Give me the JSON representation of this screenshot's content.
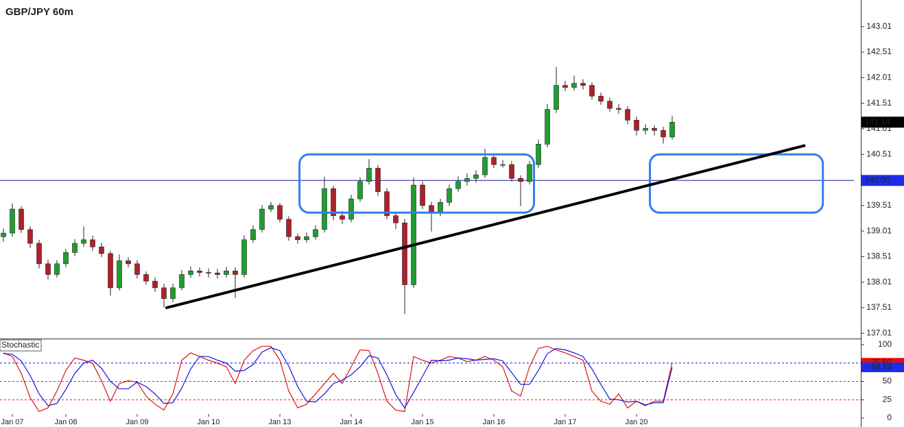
{
  "chart_data": [
    {
      "type": "candlestick",
      "title": "GBP/JPY 60m",
      "x": [
        1,
        2,
        3,
        4,
        5,
        6,
        7,
        8,
        9,
        10,
        11,
        12,
        13,
        14,
        15,
        16,
        17,
        18,
        19,
        20,
        21,
        22,
        23,
        24,
        25,
        26,
        27,
        28,
        29,
        30,
        31,
        32,
        33,
        34,
        35,
        36,
        37,
        38,
        39,
        40,
        41,
        42,
        43,
        44,
        45,
        46,
        47,
        48,
        49,
        50,
        51,
        52,
        53,
        54,
        55,
        56,
        57,
        58,
        59,
        60,
        61,
        62,
        63,
        64,
        65,
        66,
        67,
        68,
        69,
        70,
        71,
        72,
        73,
        74,
        75,
        76
      ],
      "open": [
        138.9,
        138.97,
        139.44,
        139.04,
        138.77,
        138.37,
        138.16,
        138.37,
        138.59,
        138.77,
        138.84,
        138.7,
        138.57,
        137.9,
        138.43,
        138.37,
        138.16,
        138.03,
        137.9,
        137.69,
        137.9,
        138.16,
        138.23,
        138.2,
        138.19,
        138.16,
        138.23,
        138.16,
        138.84,
        139.04,
        139.44,
        139.51,
        139.24,
        138.9,
        138.84,
        138.9,
        139.04,
        139.84,
        139.31,
        139.24,
        139.64,
        139.98,
        140.24,
        139.78,
        139.31,
        139.17,
        137.96,
        139.91,
        139.51,
        139.37,
        139.57,
        139.84,
        139.98,
        140.04,
        140.11,
        140.45,
        140.31,
        140.31,
        140.04,
        139.98,
        140.31,
        140.71,
        141.39,
        141.86,
        141.82,
        141.9,
        141.86,
        141.65,
        141.55,
        141.41,
        141.39,
        141.18,
        140.98,
        141.02,
        140.98,
        140.85
      ],
      "high": [
        139.06,
        139.55,
        139.5,
        139.1,
        138.84,
        138.45,
        138.44,
        138.66,
        138.85,
        139.1,
        138.92,
        138.78,
        138.62,
        138.55,
        138.5,
        138.44,
        138.22,
        138.1,
        137.98,
        137.98,
        138.25,
        138.32,
        138.3,
        138.28,
        138.27,
        138.31,
        138.3,
        138.93,
        139.12,
        139.52,
        139.58,
        139.56,
        139.3,
        138.96,
        138.98,
        139.12,
        140.07,
        139.9,
        139.4,
        139.72,
        140.06,
        140.42,
        140.3,
        139.85,
        139.38,
        139.25,
        140.06,
        139.98,
        139.58,
        139.64,
        139.92,
        140.08,
        140.14,
        140.2,
        140.62,
        140.52,
        140.4,
        140.38,
        140.1,
        140.38,
        140.8,
        141.5,
        142.22,
        141.95,
        142.05,
        141.98,
        141.92,
        141.72,
        141.62,
        141.5,
        141.45,
        141.25,
        141.1,
        141.08,
        141.05,
        141.26
      ],
      "low": [
        138.8,
        138.9,
        138.97,
        138.68,
        138.28,
        138.06,
        138.1,
        138.3,
        138.52,
        138.7,
        138.62,
        138.5,
        137.75,
        137.85,
        138.3,
        138.08,
        137.96,
        137.82,
        137.52,
        137.62,
        137.85,
        138.1,
        138.12,
        138.1,
        138.08,
        138.1,
        137.7,
        138.1,
        138.78,
        138.98,
        139.38,
        139.18,
        138.82,
        138.76,
        138.78,
        138.84,
        138.98,
        139.22,
        139.15,
        139.18,
        139.58,
        139.92,
        139.7,
        139.24,
        139.05,
        137.39,
        137.9,
        139.44,
        139.0,
        139.3,
        139.5,
        139.78,
        139.9,
        139.96,
        140.05,
        140.24,
        140.25,
        139.98,
        139.5,
        139.92,
        140.25,
        140.65,
        141.32,
        141.75,
        141.76,
        141.78,
        141.58,
        141.48,
        141.34,
        141.3,
        141.1,
        140.88,
        140.9,
        140.88,
        140.72,
        140.8
      ],
      "close": [
        138.97,
        139.44,
        139.04,
        138.77,
        138.37,
        138.16,
        138.37,
        138.59,
        138.77,
        138.84,
        138.7,
        138.57,
        137.9,
        138.43,
        138.37,
        138.16,
        138.03,
        137.9,
        137.69,
        137.9,
        138.16,
        138.23,
        138.2,
        138.19,
        138.16,
        138.23,
        138.16,
        138.84,
        139.04,
        139.44,
        139.51,
        139.24,
        138.9,
        138.84,
        138.9,
        139.04,
        139.84,
        139.31,
        139.24,
        139.64,
        139.98,
        140.24,
        139.78,
        139.31,
        139.17,
        137.96,
        139.91,
        139.51,
        139.37,
        139.57,
        139.84,
        139.98,
        140.04,
        140.11,
        140.45,
        140.31,
        140.31,
        140.04,
        139.98,
        140.31,
        140.71,
        141.39,
        141.86,
        141.82,
        141.9,
        141.86,
        141.65,
        141.55,
        141.41,
        141.39,
        141.18,
        140.98,
        141.02,
        140.98,
        140.85,
        141.14
      ],
      "up_color": "#1f9e2f",
      "down_color": "#b0202a",
      "xlim": [
        0.615,
        97.15
      ],
      "ylim": [
        136.92,
        143.53
      ],
      "yticks": [
        137.01,
        137.51,
        138.01,
        138.51,
        139.01,
        139.51,
        140.51,
        141.01,
        141.51,
        142.01,
        142.51,
        143.01
      ],
      "hline": {
        "value": 140,
        "label": "140.00"
      },
      "hline_color": "#1a1a9c",
      "last_price": 141.14,
      "trendline": {
        "x": [
          19.3,
          90.8
        ],
        "y": [
          137.51,
          140.68
        ]
      },
      "zones": [
        {
          "x": [
            34.2,
            60.5
          ],
          "y": [
            139.37,
            140.51
          ]
        },
        {
          "x": [
            73.5,
            92.9
          ],
          "y": [
            139.37,
            140.51
          ]
        }
      ],
      "zone_color": "#2f7fe8"
    },
    {
      "type": "line",
      "title": "Stochastic",
      "x": [
        1,
        2,
        3,
        4,
        5,
        6,
        7,
        8,
        9,
        10,
        11,
        12,
        13,
        14,
        15,
        16,
        17,
        18,
        19,
        20,
        21,
        22,
        23,
        24,
        25,
        26,
        27,
        28,
        29,
        30,
        31,
        32,
        33,
        34,
        35,
        36,
        37,
        38,
        39,
        40,
        41,
        42,
        43,
        44,
        45,
        46,
        47,
        48,
        49,
        50,
        51,
        52,
        53,
        54,
        55,
        56,
        57,
        58,
        59,
        60,
        61,
        62,
        63,
        64,
        65,
        66,
        67,
        68,
        69,
        70,
        71,
        72,
        73,
        74,
        75,
        76
      ],
      "series": [
        {
          "color": "#e01010",
          "values": [
            89,
            84,
            61,
            28,
            9,
            14,
            37,
            65,
            82,
            79,
            75,
            51,
            23,
            47,
            51,
            49,
            30,
            19,
            11,
            33,
            79,
            89,
            84,
            79,
            75,
            70,
            47,
            79,
            92,
            98,
            98,
            79,
            37,
            14,
            19,
            33,
            47,
            61,
            47,
            70,
            93,
            92,
            61,
            23,
            11,
            9,
            84,
            79,
            75,
            79,
            84,
            82,
            77,
            79,
            84,
            79,
            70,
            37,
            30,
            70,
            95,
            98,
            93,
            89,
            84,
            79,
            37,
            23,
            19,
            33,
            14,
            23,
            17,
            23,
            23,
            75.5
          ],
          "last_label": {
            "value": 75.5,
            "label": "75.50"
          }
        },
        {
          "color": "#1010e0",
          "values": [
            88,
            87,
            78,
            58,
            33,
            17,
            20,
            39,
            61,
            75,
            79,
            68,
            50,
            40,
            40,
            49,
            43,
            33,
            20,
            21,
            41,
            67,
            84,
            84,
            79,
            75,
            64,
            65,
            73,
            90,
            96,
            92,
            71,
            43,
            23,
            22,
            33,
            47,
            52,
            59,
            70,
            85,
            82,
            59,
            32,
            14,
            35,
            57,
            79,
            78,
            79,
            82,
            81,
            79,
            80,
            81,
            78,
            62,
            46,
            46,
            65,
            88,
            95,
            93,
            89,
            84,
            67,
            46,
            26,
            25,
            22,
            23,
            18,
            21,
            21,
            69.19
          ],
          "last_label": 69.19
        }
      ],
      "levels": [
        {
          "value": 75,
          "color": "#1010e0"
        },
        {
          "value": 50,
          "color": "#555555"
        },
        {
          "value": 25,
          "color": "#e01010"
        }
      ],
      "xlim": [
        0.615,
        97.15
      ],
      "ylim": [
        -12.1,
        107.5
      ],
      "yticks": [
        0,
        25,
        50,
        100
      ],
      "xticks": [
        {
          "value": 2,
          "label": "Jan 07"
        },
        {
          "value": 8,
          "label": "Jan 08"
        },
        {
          "value": 16,
          "label": "Jan 09"
        },
        {
          "value": 24,
          "label": "Jan 10"
        },
        {
          "value": 32,
          "label": "Jan 13"
        },
        {
          "value": 40,
          "label": "Jan 14"
        },
        {
          "value": 48,
          "label": "Jan 15"
        },
        {
          "value": 56,
          "label": "Jan 16"
        },
        {
          "value": 64,
          "label": "Jan 17"
        },
        {
          "value": 72,
          "label": "Jan 20"
        }
      ]
    }
  ]
}
